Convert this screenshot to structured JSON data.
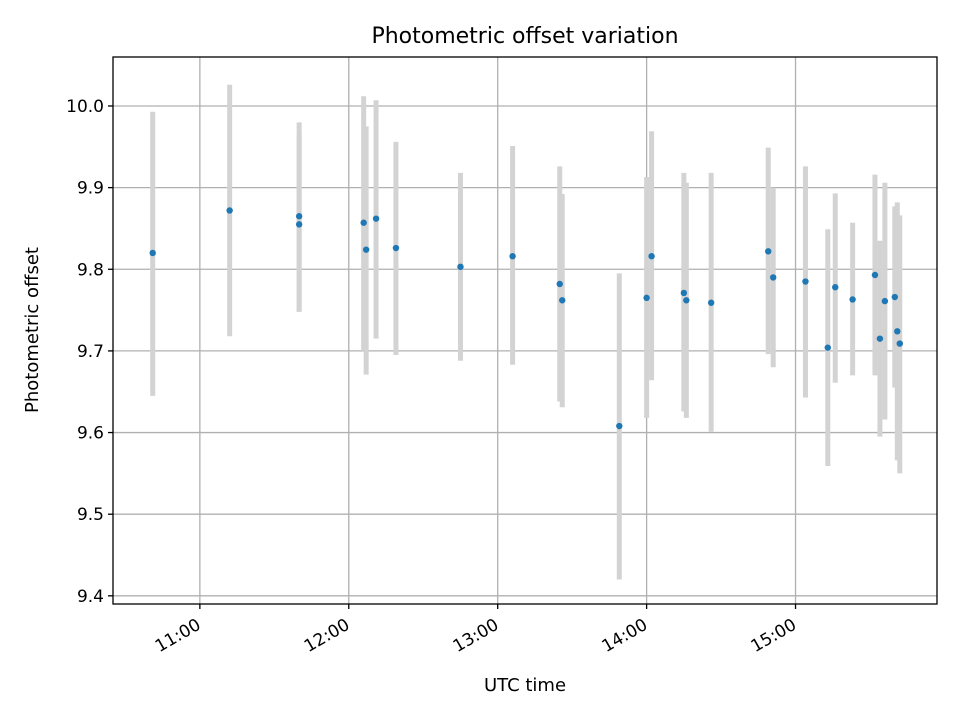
{
  "chart_data": {
    "type": "scatter",
    "title": "Photometric offset variation",
    "xlabel": "UTC time",
    "ylabel": "Photometric offset",
    "x_unit": "time of day (HH:MM, UTC)",
    "xlim": [
      "10:25",
      "15:57"
    ],
    "ylim": [
      9.39,
      10.06
    ],
    "xticks": [
      "11:00",
      "12:00",
      "13:00",
      "14:00",
      "15:00"
    ],
    "yticks": [
      9.4,
      9.5,
      9.6,
      9.7,
      9.8,
      9.9,
      10.0
    ],
    "grid": true,
    "error_bar_color": "#d3d3d3",
    "marker_color": "#1f77b4",
    "series": [
      {
        "points": [
          {
            "x": "10:41",
            "y": 9.82,
            "yerr_low": 9.645,
            "yerr_high": 9.993
          },
          {
            "x": "11:12",
            "y": 9.872,
            "yerr_low": 9.718,
            "yerr_high": 10.026
          },
          {
            "x": "11:40",
            "y": 9.865,
            "yerr_low": 9.748,
            "yerr_high": 9.98
          },
          {
            "x": "11:40",
            "y": 9.855,
            "yerr_low": 9.748,
            "yerr_high": 9.965
          },
          {
            "x": "12:06",
            "y": 9.857,
            "yerr_low": 9.7,
            "yerr_high": 10.012
          },
          {
            "x": "12:07",
            "y": 9.824,
            "yerr_low": 9.671,
            "yerr_high": 9.975
          },
          {
            "x": "12:11",
            "y": 9.862,
            "yerr_low": 9.715,
            "yerr_high": 10.007
          },
          {
            "x": "12:19",
            "y": 9.826,
            "yerr_low": 9.695,
            "yerr_high": 9.956
          },
          {
            "x": "12:45",
            "y": 9.803,
            "yerr_low": 9.688,
            "yerr_high": 9.918
          },
          {
            "x": "13:06",
            "y": 9.816,
            "yerr_low": 9.683,
            "yerr_high": 9.951
          },
          {
            "x": "13:25",
            "y": 9.782,
            "yerr_low": 9.638,
            "yerr_high": 9.926
          },
          {
            "x": "13:26",
            "y": 9.762,
            "yerr_low": 9.631,
            "yerr_high": 9.892
          },
          {
            "x": "13:49",
            "y": 9.608,
            "yerr_low": 9.42,
            "yerr_high": 9.795
          },
          {
            "x": "14:00",
            "y": 9.765,
            "yerr_low": 9.618,
            "yerr_high": 9.913
          },
          {
            "x": "14:02",
            "y": 9.816,
            "yerr_low": 9.664,
            "yerr_high": 9.969
          },
          {
            "x": "14:15",
            "y": 9.771,
            "yerr_low": 9.626,
            "yerr_high": 9.918
          },
          {
            "x": "14:16",
            "y": 9.762,
            "yerr_low": 9.618,
            "yerr_high": 9.906
          },
          {
            "x": "14:26",
            "y": 9.759,
            "yerr_low": 9.601,
            "yerr_high": 9.918
          },
          {
            "x": "14:49",
            "y": 9.822,
            "yerr_low": 9.696,
            "yerr_high": 9.949
          },
          {
            "x": "14:51",
            "y": 9.79,
            "yerr_low": 9.68,
            "yerr_high": 9.9
          },
          {
            "x": "15:04",
            "y": 9.785,
            "yerr_low": 9.643,
            "yerr_high": 9.926
          },
          {
            "x": "15:13",
            "y": 9.704,
            "yerr_low": 9.559,
            "yerr_high": 9.849
          },
          {
            "x": "15:16",
            "y": 9.778,
            "yerr_low": 9.661,
            "yerr_high": 9.893
          },
          {
            "x": "15:23",
            "y": 9.763,
            "yerr_low": 9.67,
            "yerr_high": 9.857
          },
          {
            "x": "15:32",
            "y": 9.793,
            "yerr_low": 9.67,
            "yerr_high": 9.916
          },
          {
            "x": "15:34",
            "y": 9.715,
            "yerr_low": 9.595,
            "yerr_high": 9.835
          },
          {
            "x": "15:36",
            "y": 9.761,
            "yerr_low": 9.616,
            "yerr_high": 9.906
          },
          {
            "x": "15:40",
            "y": 9.766,
            "yerr_low": 9.655,
            "yerr_high": 9.877
          },
          {
            "x": "15:41",
            "y": 9.724,
            "yerr_low": 9.566,
            "yerr_high": 9.882
          },
          {
            "x": "15:42",
            "y": 9.709,
            "yerr_low": 9.55,
            "yerr_high": 9.866
          }
        ]
      }
    ]
  }
}
